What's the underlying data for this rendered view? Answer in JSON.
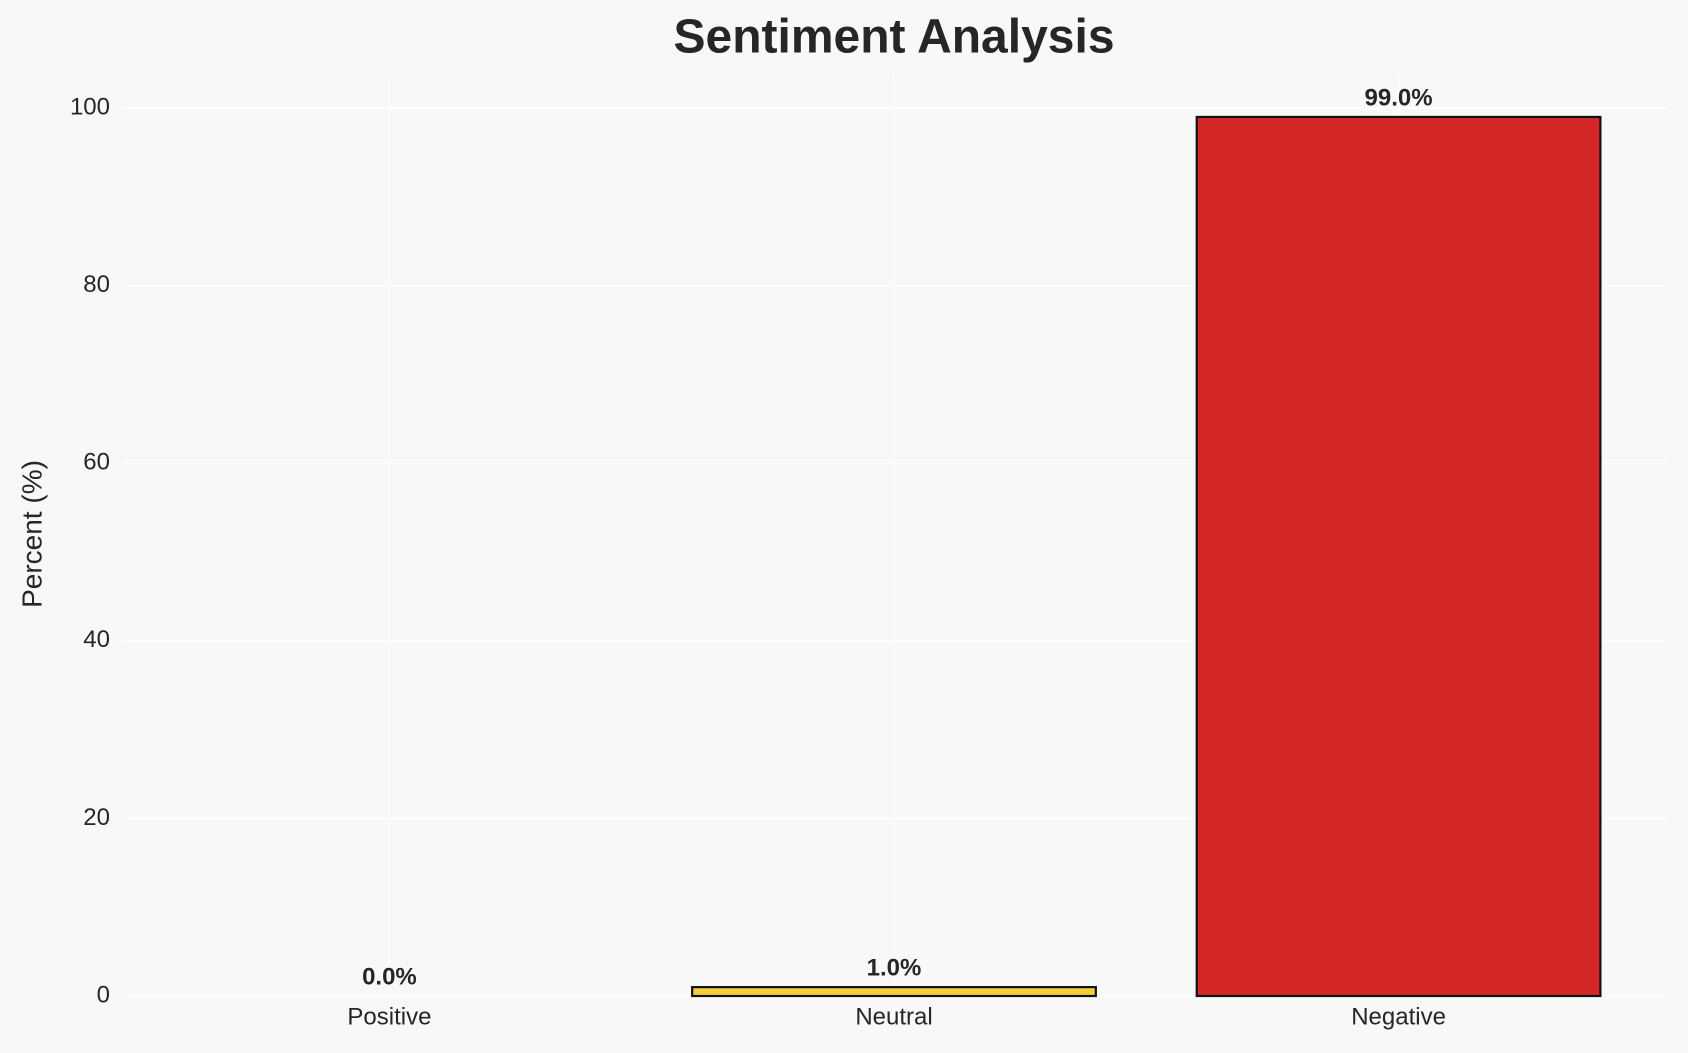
{
  "chart_data": {
    "type": "bar",
    "title": "Sentiment Analysis",
    "ylabel": "Percent (%)",
    "categories": [
      "Positive",
      "Neutral",
      "Negative"
    ],
    "values": [
      0.0,
      1.0,
      99.0
    ],
    "value_labels": [
      "0.0%",
      "1.0%",
      "99.0%"
    ],
    "colors": [
      "#2ca02c",
      "#f4cf3b",
      "#d62728"
    ],
    "ylim": [
      0,
      103.95
    ],
    "yticks": [
      0,
      20,
      40,
      60,
      80,
      100
    ],
    "grid": true
  }
}
